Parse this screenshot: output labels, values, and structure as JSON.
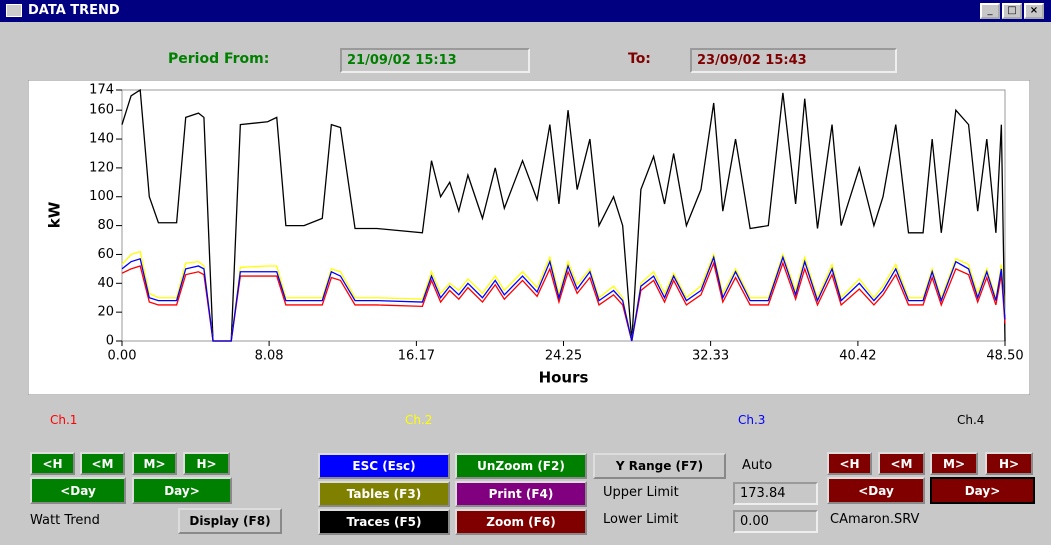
{
  "window": {
    "title": "DATA TREND"
  },
  "period": {
    "from_label": "Period From:",
    "from": "21/09/02 15:13",
    "to_label": "To:",
    "to": "23/09/02 15:43"
  },
  "chart_data": {
    "type": "line",
    "x_label": "Hours",
    "y_label": "kW",
    "xlim": [
      0,
      48.5
    ],
    "ylim": [
      0,
      174
    ],
    "xticks": [
      {
        "value": 0,
        "label": "0.00"
      },
      {
        "value": 8.08,
        "label": "8.08"
      },
      {
        "value": 16.17,
        "label": "16.17"
      },
      {
        "value": 24.25,
        "label": "24.25"
      },
      {
        "value": 32.33,
        "label": "32.33"
      },
      {
        "value": 40.42,
        "label": "40.42"
      },
      {
        "value": 48.5,
        "label": "48.50"
      }
    ],
    "yticks": [
      0,
      20,
      40,
      60,
      80,
      100,
      120,
      140,
      160,
      174
    ],
    "x": [
      0,
      0.5,
      1,
      1.5,
      2,
      3,
      3.5,
      4.2,
      4.5,
      5,
      6,
      6.5,
      8,
      8.5,
      9,
      10,
      11,
      11.5,
      12,
      12.8,
      14,
      16.5,
      17,
      17.5,
      18,
      18.5,
      19,
      19.8,
      20.5,
      21,
      22,
      22.8,
      23.5,
      24,
      24.5,
      25,
      25.7,
      26.2,
      27,
      27.5,
      28,
      28.5,
      29.2,
      29.8,
      30.3,
      31,
      31.8,
      32.5,
      33,
      33.7,
      34.5,
      35.5,
      36.3,
      37,
      37.5,
      38.2,
      39,
      39.5,
      40.5,
      41.3,
      41.8,
      42.5,
      43.2,
      44,
      44.5,
      45,
      45.8,
      46.5,
      47,
      47.5,
      48,
      48.3,
      48.5
    ],
    "series": [
      {
        "name": "Ch.4",
        "color": "#000000",
        "values": [
          150,
          170,
          174,
          100,
          82,
          82,
          155,
          158,
          155,
          0,
          0,
          150,
          152,
          155,
          80,
          80,
          85,
          150,
          148,
          78,
          78,
          75,
          125,
          100,
          110,
          90,
          115,
          85,
          120,
          92,
          125,
          98,
          150,
          95,
          160,
          105,
          140,
          80,
          100,
          80,
          0,
          105,
          128,
          95,
          130,
          80,
          105,
          165,
          90,
          140,
          78,
          80,
          172,
          95,
          168,
          78,
          150,
          80,
          120,
          80,
          100,
          150,
          75,
          75,
          140,
          75,
          160,
          150,
          90,
          140,
          75,
          150,
          0
        ]
      },
      {
        "name": "Ch.2",
        "color": "#ffff00",
        "values": [
          53,
          60,
          62,
          33,
          30,
          30,
          54,
          55,
          52,
          0,
          0,
          51,
          52,
          52,
          30,
          30,
          30,
          50,
          48,
          30,
          30,
          29,
          48,
          33,
          40,
          35,
          43,
          33,
          45,
          35,
          48,
          37,
          58,
          33,
          55,
          39,
          50,
          30,
          38,
          30,
          0,
          40,
          48,
          33,
          47,
          30,
          38,
          60,
          33,
          50,
          30,
          30,
          60,
          35,
          58,
          30,
          53,
          30,
          43,
          30,
          38,
          53,
          30,
          30,
          50,
          30,
          57,
          53,
          33,
          50,
          30,
          53,
          18
        ]
      },
      {
        "name": "Ch.1",
        "color": "#ff0000",
        "values": [
          47,
          50,
          52,
          27,
          25,
          25,
          46,
          48,
          46,
          0,
          0,
          45,
          45,
          45,
          25,
          25,
          25,
          44,
          42,
          25,
          25,
          24,
          42,
          27,
          35,
          29,
          37,
          27,
          39,
          29,
          42,
          31,
          50,
          27,
          48,
          33,
          44,
          25,
          32,
          25,
          0,
          35,
          42,
          27,
          42,
          25,
          32,
          54,
          27,
          44,
          25,
          25,
          54,
          29,
          50,
          25,
          46,
          25,
          36,
          25,
          32,
          46,
          25,
          25,
          44,
          25,
          50,
          46,
          27,
          44,
          25,
          46,
          12
        ]
      },
      {
        "name": "Ch.3",
        "color": "#0000ff",
        "values": [
          50,
          55,
          57,
          30,
          28,
          28,
          50,
          52,
          50,
          0,
          0,
          48,
          48,
          48,
          28,
          28,
          28,
          48,
          45,
          28,
          28,
          27,
          45,
          30,
          38,
          32,
          40,
          30,
          42,
          32,
          45,
          34,
          55,
          30,
          52,
          36,
          48,
          28,
          35,
          28,
          0,
          38,
          45,
          30,
          45,
          28,
          35,
          58,
          30,
          48,
          28,
          28,
          58,
          32,
          55,
          28,
          50,
          28,
          40,
          28,
          35,
          50,
          28,
          28,
          48,
          28,
          55,
          50,
          30,
          48,
          28,
          50,
          15
        ]
      }
    ]
  },
  "controls": {
    "left_nav": [
      "<H",
      "<M",
      "M>",
      "H>",
      "<Day",
      "Day>"
    ],
    "right_nav": [
      "<H",
      "<M",
      "M>",
      "H>",
      "<Day",
      "Day>"
    ],
    "trend_label": "Watt Trend",
    "display": "Display (F8)",
    "esc": "ESC (Esc)",
    "tables": "Tables (F3)",
    "traces": "Traces (F5)",
    "unzoom": "UnZoom (F2)",
    "print": "Print (F4)",
    "zoom": "Zoom (F6)",
    "y_range": "Y Range (F7)",
    "auto": "Auto",
    "upper_label": "Upper Limit",
    "upper_value": "173.84",
    "lower_label": "Lower Limit",
    "lower_value": "0.00",
    "server": "CAmaron.SRV"
  }
}
